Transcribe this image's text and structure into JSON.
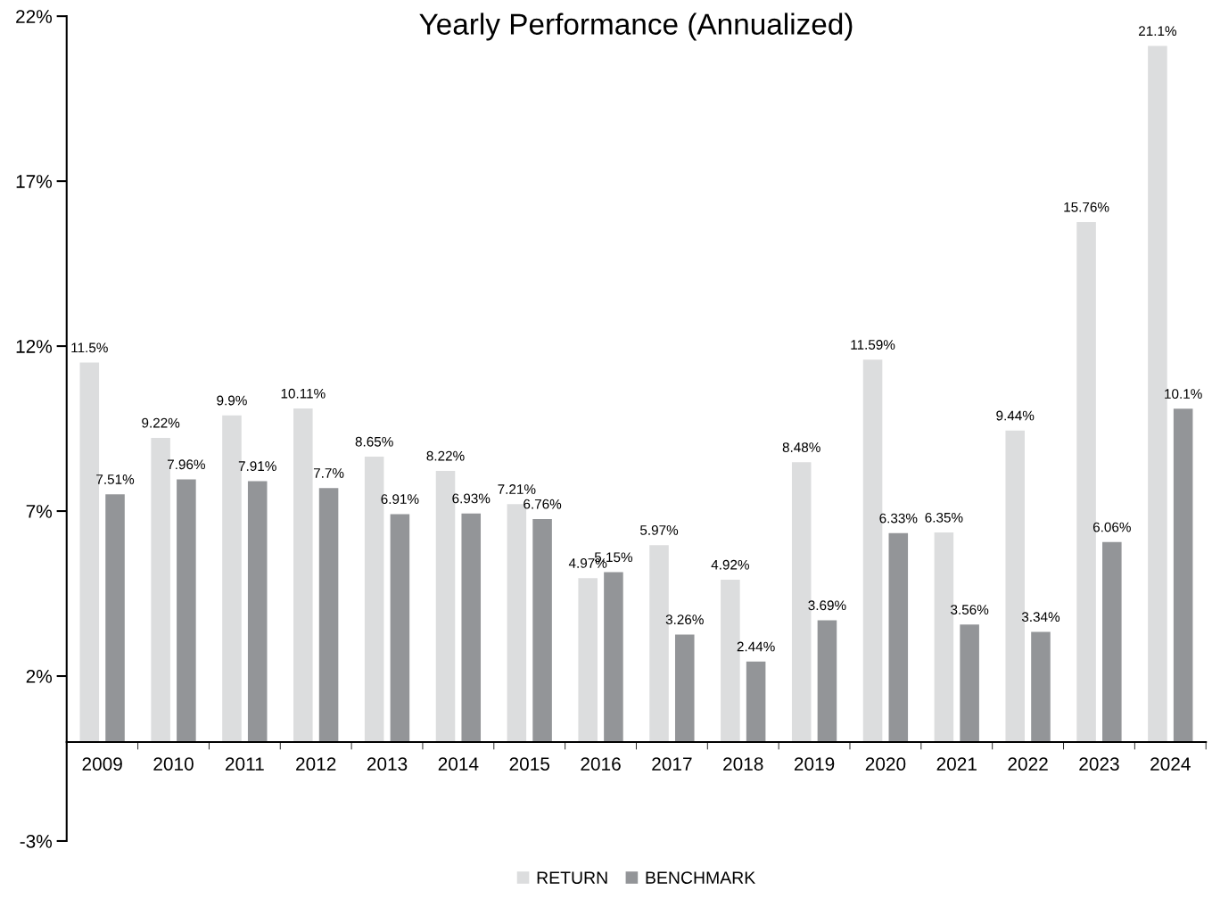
{
  "chart_data": {
    "type": "bar",
    "title": "Yearly Performance (Annualized)",
    "categories": [
      "2009",
      "2010",
      "2011",
      "2012",
      "2013",
      "2014",
      "2015",
      "2016",
      "2017",
      "2018",
      "2019",
      "2020",
      "2021",
      "2022",
      "2023",
      "2024"
    ],
    "series": [
      {
        "name": "RETURN",
        "color": "#dcddde",
        "values": [
          11.5,
          9.22,
          9.9,
          10.11,
          8.65,
          8.22,
          7.21,
          4.97,
          5.97,
          4.92,
          8.48,
          11.59,
          6.35,
          9.44,
          15.76,
          21.1
        ],
        "value_labels": [
          "11.5%",
          "9.22%",
          "9.9%",
          "10.11%",
          "8.65%",
          "8.22%",
          "7.21%",
          "4.97%",
          "5.97%",
          "4.92%",
          "8.48%",
          "11.59%",
          "6.35%",
          "9.44%",
          "15.76%",
          "21.1%"
        ]
      },
      {
        "name": "BENCHMARK",
        "color": "#939598",
        "values": [
          7.51,
          7.96,
          7.91,
          7.7,
          6.91,
          6.93,
          6.76,
          5.15,
          3.26,
          2.44,
          3.69,
          6.33,
          3.56,
          3.34,
          6.06,
          10.1
        ],
        "value_labels": [
          "7.51%",
          "7.96%",
          "7.91%",
          "7.7%",
          "6.91%",
          "6.93%",
          "6.76%",
          "5.15%",
          "3.26%",
          "2.44%",
          "3.69%",
          "6.33%",
          "3.56%",
          "3.34%",
          "6.06%",
          "10.1%"
        ]
      }
    ],
    "ylim": [
      -3,
      22
    ],
    "yticks": [
      {
        "value": -3,
        "label": "-3%"
      },
      {
        "value": 2,
        "label": "2%"
      },
      {
        "value": 7,
        "label": "7%"
      },
      {
        "value": 12,
        "label": "12%"
      },
      {
        "value": 17,
        "label": "17%"
      },
      {
        "value": 22,
        "label": "22%"
      }
    ],
    "grid": false,
    "legend": "bottom"
  }
}
